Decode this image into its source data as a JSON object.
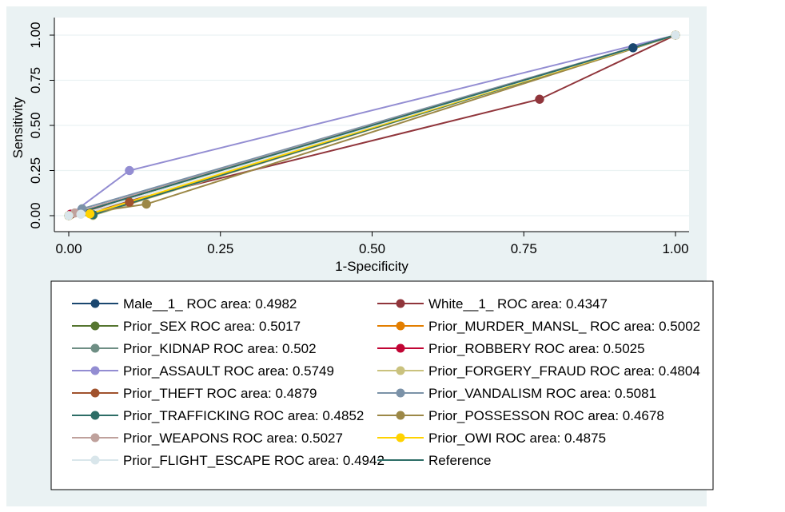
{
  "chart_data": {
    "type": "line",
    "xlabel": "1-Specificity",
    "ylabel": "Sensitivity",
    "xlim": [
      0,
      1
    ],
    "ylim": [
      0,
      1
    ],
    "xticks": [
      "0.00",
      "0.25",
      "0.50",
      "0.75",
      "1.00"
    ],
    "yticks": [
      "0.00",
      "0.25",
      "0.50",
      "0.75",
      "1.00"
    ],
    "grid": "horizontal",
    "legend": "bottom",
    "series": [
      {
        "name": "Male__1_ ROC area: 0.4982",
        "color": "#1a476f",
        "points": [
          [
            0,
            0
          ],
          [
            0.93,
            0.93
          ],
          [
            1,
            1
          ]
        ]
      },
      {
        "name": "White__1_ ROC area: 0.4347",
        "color": "#90353b",
        "points": [
          [
            0,
            0
          ],
          [
            0.776,
            0.645
          ],
          [
            1,
            1
          ]
        ]
      },
      {
        "name": "Prior_SEX ROC area: 0.5017",
        "color": "#55752f",
        "points": [
          [
            0,
            0
          ],
          [
            0.004,
            0.008
          ],
          [
            1,
            1
          ]
        ]
      },
      {
        "name": "Prior_MURDER_MANSL_ ROC area: 0.5002",
        "color": "#e37e00",
        "points": [
          [
            0,
            0
          ],
          [
            0.001,
            0.001
          ],
          [
            1,
            1
          ]
        ]
      },
      {
        "name": "Prior_KIDNAP ROC area: 0.502",
        "color": "#6e8e84",
        "points": [
          [
            0,
            0
          ],
          [
            0.002,
            0.006
          ],
          [
            1,
            1
          ]
        ]
      },
      {
        "name": "Prior_ROBBERY ROC area: 0.5025",
        "color": "#c10534",
        "points": [
          [
            0,
            0
          ],
          [
            0.003,
            0.008
          ],
          [
            1,
            1
          ]
        ]
      },
      {
        "name": "Prior_ASSAULT ROC area: 0.5749",
        "color": "#938dd2",
        "points": [
          [
            0,
            0
          ],
          [
            0.1,
            0.25
          ],
          [
            1,
            1
          ]
        ]
      },
      {
        "name": "Prior_FORGERY_FRAUD ROC area: 0.4804",
        "color": "#cac27e",
        "points": [
          [
            0,
            0
          ],
          [
            0.04,
            0.001
          ],
          [
            1,
            1
          ]
        ]
      },
      {
        "name": "Prior_THEFT ROC area: 0.4879",
        "color": "#a0522d",
        "points": [
          [
            0,
            0
          ],
          [
            0.1,
            0.075
          ],
          [
            1,
            1
          ]
        ]
      },
      {
        "name": "Prior_VANDALISM ROC area: 0.5081",
        "color": "#7b92a8",
        "points": [
          [
            0,
            0
          ],
          [
            0.022,
            0.038
          ],
          [
            1,
            1
          ]
        ]
      },
      {
        "name": "Prior_TRAFFICKING ROC area: 0.4852",
        "color": "#2d6d66",
        "points": [
          [
            0,
            0
          ],
          [
            0.04,
            0.005
          ],
          [
            1,
            1
          ]
        ]
      },
      {
        "name": "Prior_POSSESSON ROC area: 0.4678",
        "color": "#9c8847",
        "points": [
          [
            0,
            0
          ],
          [
            0.128,
            0.064
          ],
          [
            1,
            1
          ]
        ]
      },
      {
        "name": "Prior_WEAPONS ROC area: 0.5027",
        "color": "#bfa19c",
        "points": [
          [
            0,
            0
          ],
          [
            0.01,
            0.015
          ],
          [
            1,
            1
          ]
        ]
      },
      {
        "name": "Prior_OWI ROC area: 0.4875",
        "color": "#ffd200",
        "points": [
          [
            0,
            0
          ],
          [
            0.035,
            0.01
          ],
          [
            1,
            1
          ]
        ]
      },
      {
        "name": "Prior_FLIGHT_ESCAPE ROC area: 0.4942",
        "color": "#d9e6eb",
        "points": [
          [
            0,
            0
          ],
          [
            0.02,
            0.008
          ],
          [
            1,
            1
          ]
        ]
      },
      {
        "name": "Reference",
        "color": "#2d6d66",
        "points": [
          [
            0,
            0
          ],
          [
            1,
            1
          ]
        ],
        "markers": false
      }
    ]
  }
}
